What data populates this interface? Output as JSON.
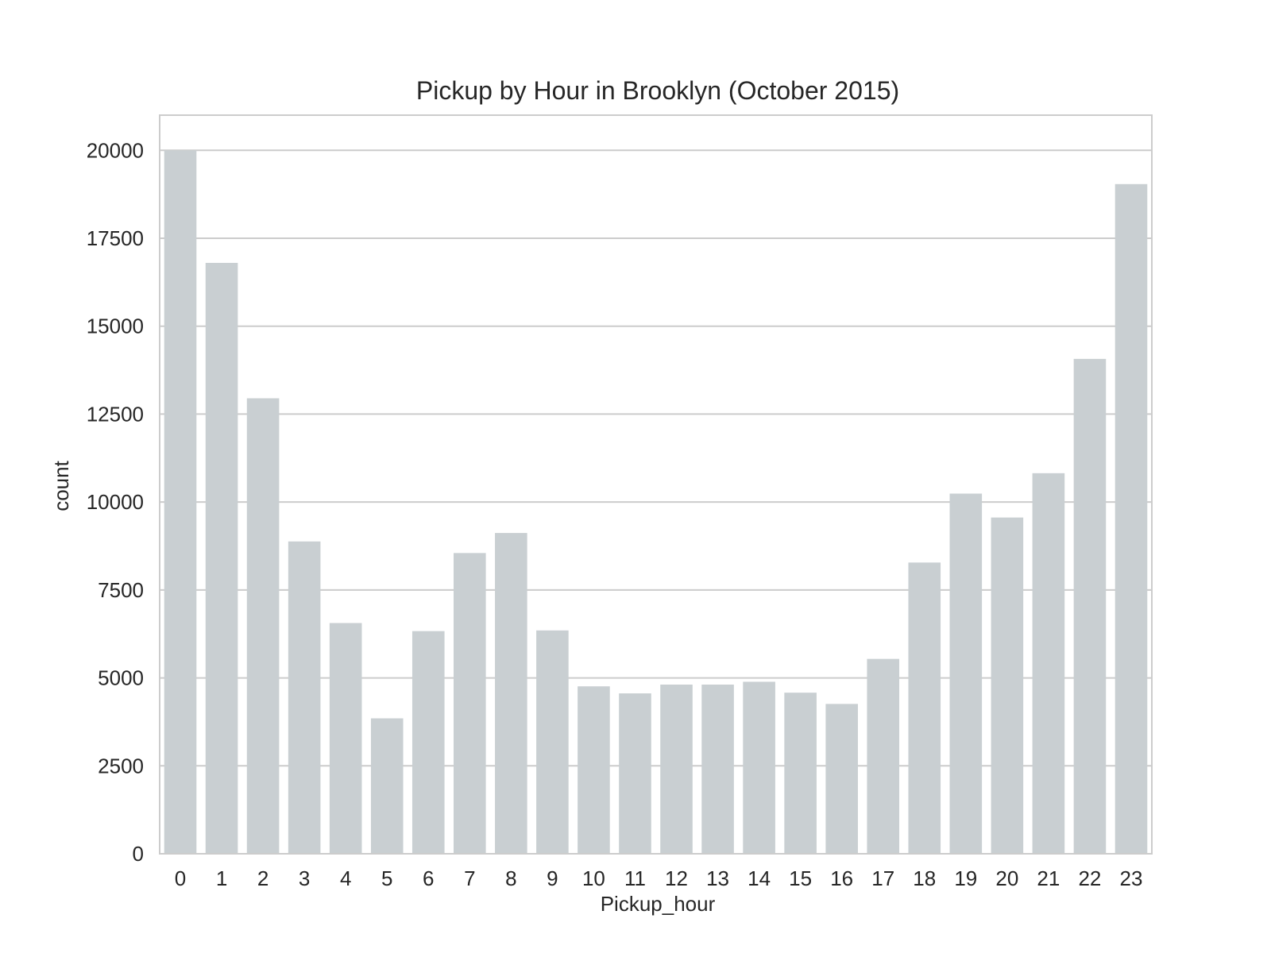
{
  "chart_data": {
    "type": "bar",
    "title": "Pickup by Hour in Brooklyn (October 2015)",
    "xlabel": "Pickup_hour",
    "ylabel": "count",
    "categories": [
      "0",
      "1",
      "2",
      "3",
      "4",
      "5",
      "6",
      "7",
      "8",
      "9",
      "10",
      "11",
      "12",
      "13",
      "14",
      "15",
      "16",
      "17",
      "18",
      "19",
      "20",
      "21",
      "22",
      "23"
    ],
    "values": [
      20000,
      16800,
      12950,
      8880,
      6560,
      3850,
      6330,
      8550,
      9120,
      6350,
      4760,
      4560,
      4810,
      4810,
      4890,
      4580,
      4260,
      5540,
      8280,
      10240,
      9560,
      10820,
      14070,
      19040
    ],
    "ylim": [
      0,
      21000
    ],
    "yticks": [
      0,
      2500,
      5000,
      7500,
      10000,
      12500,
      15000,
      17500,
      20000
    ],
    "ytick_labels": [
      "0",
      "2500",
      "5000",
      "7500",
      "10000",
      "12500",
      "15000",
      "17500",
      "20000"
    ],
    "grid": true,
    "legend": "none",
    "colors": {
      "bar": "#c9cfd2",
      "grid": "#cccccc",
      "frame": "#cccccc",
      "text": "#262626",
      "background": "#ffffff"
    }
  }
}
